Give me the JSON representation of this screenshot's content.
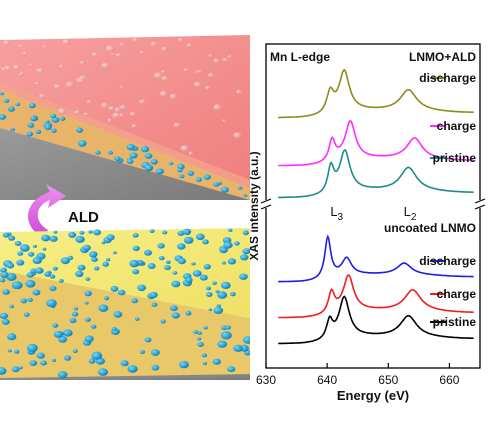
{
  "illustration": {
    "process_label": "ALD",
    "colors": {
      "coating_top": "#f28b8b",
      "coating_side": "#e8a870",
      "electrode_top": "#f4ea74",
      "electrode_side": "#e9c86a",
      "particles": "#2ba6d8",
      "substrate": "#8c8c8c",
      "arrow": "#d65ad8"
    }
  },
  "chart_data": {
    "type": "line",
    "title": "Mn L-edge",
    "xlabel": "Energy (eV)",
    "ylabel": "XAS intensity (a.u.)",
    "xlim": [
      630,
      665
    ],
    "xticks": [
      "630",
      "640",
      "650",
      "660"
    ],
    "grid": false,
    "axis_break": "y",
    "peak_labels": [
      {
        "main": "L",
        "sub": "3",
        "x": 641.5
      },
      {
        "main": "L",
        "sub": "2",
        "x": 653.5
      }
    ],
    "groups": [
      {
        "label": "LNMO+ALD",
        "series": [
          {
            "name": "discharge",
            "color": "#8b8b1e",
            "peaks": [
              [
                640.5,
                0.45,
                0.7
              ],
              [
                642.8,
                0.85,
                1.0
              ],
              [
                653.3,
                0.45,
                1.6
              ]
            ]
          },
          {
            "name": "charge",
            "color": "#ff2bff",
            "peaks": [
              [
                640.8,
                0.45,
                0.6
              ],
              [
                643.8,
                0.8,
                1.0
              ],
              [
                654.3,
                0.45,
                1.5
              ]
            ]
          },
          {
            "name": "pristine",
            "color": "#1e8a8a",
            "peaks": [
              [
                640.6,
                0.55,
                0.6
              ],
              [
                642.9,
                0.85,
                1.0
              ],
              [
                653.3,
                0.5,
                1.6
              ]
            ]
          }
        ]
      },
      {
        "label": "uncoated LNMO",
        "series": [
          {
            "name": "discharge",
            "color": "#1e1ee6",
            "peaks": [
              [
                640.1,
                0.9,
                0.6
              ],
              [
                643.2,
                0.35,
                0.9
              ],
              [
                652.6,
                0.25,
                1.4
              ]
            ]
          },
          {
            "name": "charge",
            "color": "#ee1e1e",
            "peaks": [
              [
                640.7,
                0.45,
                0.6
              ],
              [
                643.5,
                0.75,
                1.0
              ],
              [
                654.0,
                0.45,
                1.6
              ]
            ]
          },
          {
            "name": "pristine",
            "color": "#000000",
            "peaks": [
              [
                640.4,
                0.4,
                0.6
              ],
              [
                642.8,
                0.85,
                1.0
              ],
              [
                653.3,
                0.45,
                1.6
              ]
            ]
          }
        ]
      }
    ]
  }
}
